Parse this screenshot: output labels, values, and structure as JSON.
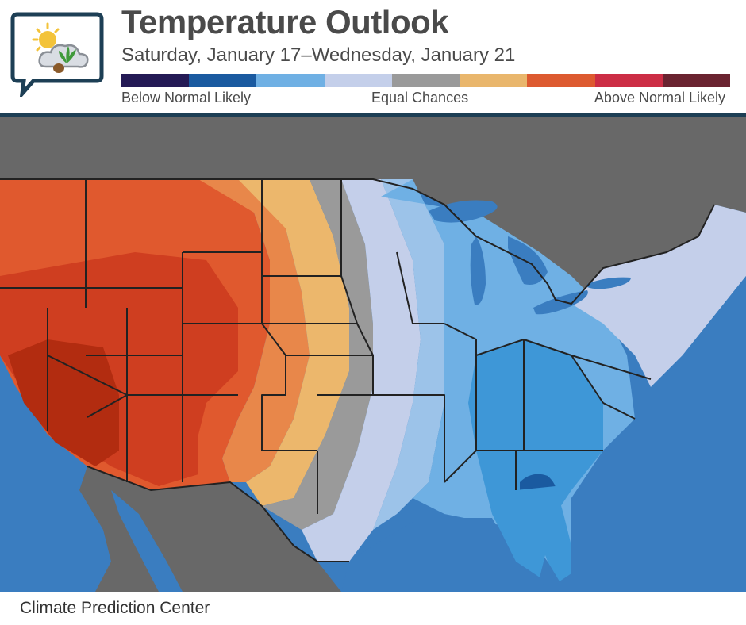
{
  "header": {
    "title": "Temperature Outlook",
    "subtitle": "Saturday, January 17–Wednesday, January 21"
  },
  "legend": {
    "swatches": [
      "#241a55",
      "#1a5aa0",
      "#6fb0e4",
      "#c4cfea",
      "#9a9a9a",
      "#e9b66c",
      "#dd5a30",
      "#cc2d45",
      "#6a2330"
    ],
    "left_label": "Below Normal Likely",
    "middle_label": "Equal Chances",
    "right_label": "Above Normal Likely"
  },
  "map": {
    "colors": {
      "water": "#3a7dc0",
      "land_outside": "#686868",
      "dark_red": "#b22c10",
      "red": "#cf3e20",
      "red_orange": "#e0592e",
      "orange": "#e8874a",
      "light_orange": "#ecb76c",
      "gray": "#9a9a9a",
      "pale_blue": "#c4cfea",
      "light_blue": "#9cc3e9",
      "medium_blue": "#6fb0e4",
      "blue": "#3e97d7",
      "dark_blue": "#1a5aa0",
      "border": "#222222"
    }
  },
  "footer": {
    "source": "Climate Prediction Center"
  }
}
